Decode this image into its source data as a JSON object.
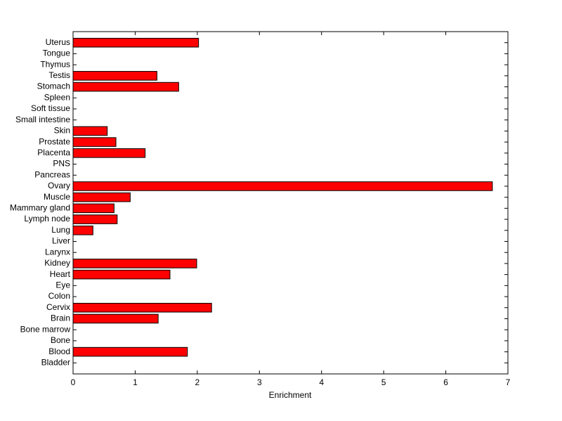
{
  "chart_data": {
    "type": "barh",
    "xlabel": "Enrichment",
    "categories": [
      "Bladder",
      "Blood",
      "Bone",
      "Bone marrow",
      "Brain",
      "Cervix",
      "Colon",
      "Eye",
      "Heart",
      "Kidney",
      "Larynx",
      "Liver",
      "Lung",
      "Lymph node",
      "Mammary gland",
      "Muscle",
      "Ovary",
      "Pancreas",
      "PNS",
      "Placenta",
      "Prostate",
      "Skin",
      "Small intestine",
      "Soft tissue",
      "Spleen",
      "Stomach",
      "Testis",
      "Thymus",
      "Tongue",
      "Uterus"
    ],
    "values": [
      0,
      1.84,
      0,
      0,
      1.37,
      2.23,
      0,
      0,
      1.56,
      1.99,
      0,
      0,
      0.32,
      0.71,
      0.66,
      0.92,
      6.75,
      0,
      0,
      1.16,
      0.69,
      0.55,
      0,
      0,
      0,
      1.7,
      1.35,
      0,
      0,
      2.02
    ],
    "color": "#ff0000",
    "xlim": [
      0,
      7
    ],
    "xticks": [
      0,
      1,
      2,
      3,
      4,
      5,
      6,
      7
    ],
    "grid": false
  }
}
